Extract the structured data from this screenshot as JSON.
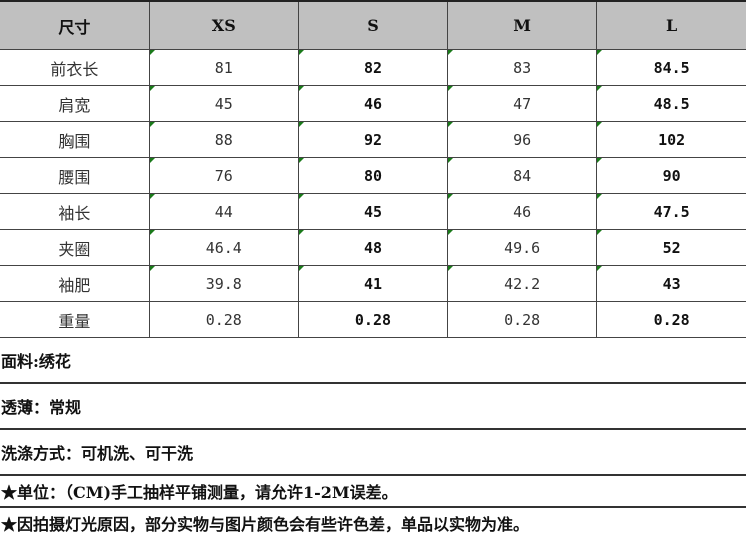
{
  "table": {
    "headers": [
      "尺寸",
      "XS",
      "S",
      "M",
      "L"
    ],
    "rows": [
      {
        "label": "前衣长",
        "values": [
          "81",
          "82",
          "83",
          "84.5"
        ]
      },
      {
        "label": "肩宽",
        "values": [
          "45",
          "46",
          "47",
          "48.5"
        ]
      },
      {
        "label": "胸围",
        "values": [
          "88",
          "92",
          "96",
          "102"
        ]
      },
      {
        "label": "腰围",
        "values": [
          "76",
          "80",
          "84",
          "90"
        ]
      },
      {
        "label": "袖长",
        "values": [
          "44",
          "45",
          "46",
          "47.5"
        ]
      },
      {
        "label": "夹圈",
        "values": [
          "46.4",
          "48",
          "49.6",
          "52"
        ]
      },
      {
        "label": "袖肥",
        "values": [
          "39.8",
          "41",
          "42.2",
          "43"
        ]
      },
      {
        "label": "重量",
        "values": [
          "0.28",
          "0.28",
          "0.28",
          "0.28"
        ]
      }
    ],
    "corner_marker_color": "#1a7a1a",
    "header_bg": "#c0c0c0"
  },
  "notes": [
    "面料:绣花",
    "透薄：常规",
    "洗涤方式：可机洗、可干洗",
    "★单位：（CM)手工抽样平铺测量，请允许1-2M误差。",
    "★因拍摄灯光原因，部分实物与图片颜色会有些许色差，单品以实物为准。"
  ]
}
